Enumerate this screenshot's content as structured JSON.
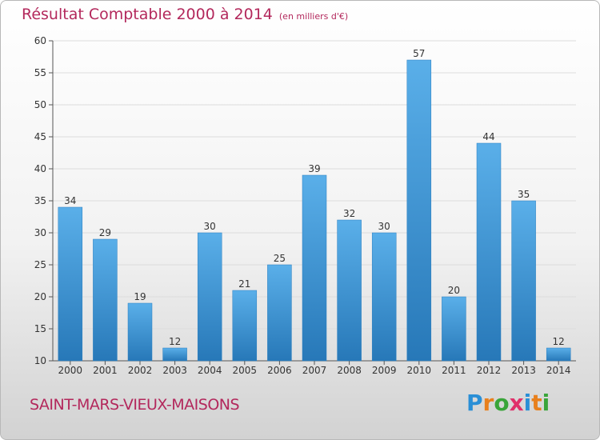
{
  "title": "Résultat Comptable 2000 à 2014",
  "subtitle": "(en milliers d'€)",
  "place_name": "SAINT-MARS-VIEUX-MAISONS",
  "logo": {
    "text": "Proxiti",
    "letters": [
      "P",
      "r",
      "o",
      "x",
      "i",
      "t",
      "i"
    ],
    "colors": [
      "#2a8fd6",
      "#e8801d",
      "#3aa53a",
      "#e0306a",
      "#2a8fd6",
      "#e8801d",
      "#3aa53a"
    ]
  },
  "colors": {
    "accent": "#b3285c",
    "bar_light": "#5aafe9",
    "bar_dark": "#2778b8"
  },
  "chart_data": {
    "type": "bar",
    "categories": [
      "2000",
      "2001",
      "2002",
      "2003",
      "2004",
      "2005",
      "2006",
      "2007",
      "2008",
      "2009",
      "2010",
      "2011",
      "2012",
      "2013",
      "2014"
    ],
    "values": [
      34,
      29,
      19,
      12,
      30,
      21,
      25,
      39,
      32,
      30,
      57,
      20,
      44,
      35,
      12
    ],
    "ylim": [
      10,
      60
    ],
    "yticks": [
      10,
      15,
      20,
      25,
      30,
      35,
      40,
      45,
      50,
      55,
      60
    ],
    "grid": true,
    "data_labels": true
  }
}
